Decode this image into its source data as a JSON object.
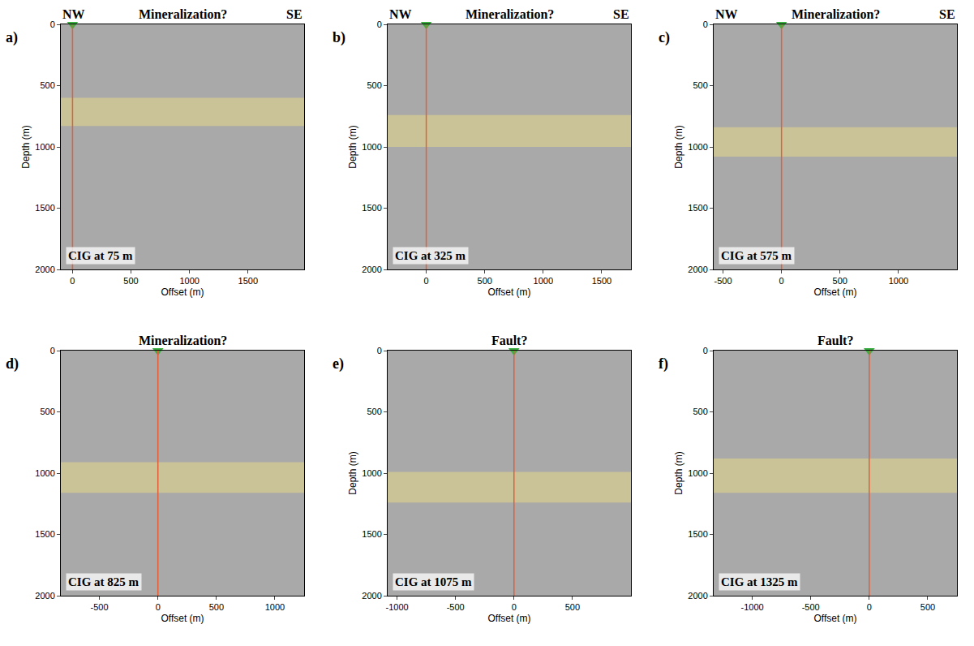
{
  "chart_data": [
    {
      "type": "seismic",
      "panel": "a)",
      "left_header": "NW",
      "title": "Mineralization?",
      "right_header": "SE",
      "annotation": "CIG at 75 m",
      "xlabel": "Offset (m)",
      "ylabel": "Depth (m)",
      "xlim": [
        -100,
        1980
      ],
      "xticks": [
        0,
        500,
        1000,
        1500
      ],
      "ylim": [
        2000,
        0
      ],
      "yticks": [
        0,
        500,
        1000,
        1500,
        2000
      ],
      "highlight": {
        "y": [
          600,
          830
        ],
        "color": "#e8d98a"
      },
      "cig_location": {
        "x": 0,
        "y": 0,
        "color": "#3cb043",
        "line_color": "#e0603a"
      }
    },
    {
      "type": "seismic",
      "panel": "b)",
      "left_header": "NW",
      "title": "Mineralization?",
      "right_header": "SE",
      "annotation": "CIG at 325 m",
      "xlabel": "Offset (m)",
      "ylabel": "Depth (m)",
      "xlim": [
        -330,
        1750
      ],
      "xticks": [
        0,
        500,
        1000,
        1500
      ],
      "ylim": [
        2000,
        0
      ],
      "yticks": [
        0,
        500,
        1000,
        1500,
        2000
      ],
      "highlight": {
        "y": [
          740,
          1000
        ],
        "color": "#e8d98a"
      },
      "cig_location": {
        "x": 0,
        "y": 0,
        "color": "#3cb043",
        "line_color": "#e0603a"
      }
    },
    {
      "type": "seismic",
      "panel": "c)",
      "left_header": "NW",
      "title": "Mineralization?",
      "right_header": "SE",
      "annotation": "CIG at 575 m",
      "xlabel": "Offset (m)",
      "ylabel": "Depth (m)",
      "xlim": [
        -580,
        1500
      ],
      "xticks": [
        -500,
        0,
        500,
        1000
      ],
      "ylim": [
        2000,
        0
      ],
      "yticks": [
        0,
        500,
        1000,
        1500,
        2000
      ],
      "highlight": {
        "y": [
          840,
          1080
        ],
        "color": "#e8d98a"
      },
      "cig_location": {
        "x": 0,
        "y": 0,
        "color": "#3cb043",
        "line_color": "#e0603a"
      }
    },
    {
      "type": "seismic",
      "panel": "d)",
      "title": "Mineralization?",
      "annotation": "CIG at 825 m",
      "xlabel": "Offset (m)",
      "xlim": [
        -830,
        1250
      ],
      "xticks": [
        -500,
        0,
        500,
        1000
      ],
      "ylim": [
        2000,
        0
      ],
      "yticks": [
        0,
        500,
        1000,
        1500,
        2000
      ],
      "highlight": {
        "y": [
          910,
          1160
        ],
        "color": "#e8d98a"
      },
      "cig_location": {
        "x": 0,
        "y": 0,
        "color": "#3cb043",
        "line_color": "#e0603a"
      }
    },
    {
      "type": "seismic",
      "panel": "e)",
      "title": "Fault?",
      "annotation": "CIG at 1075 m",
      "xlabel": "Offset (m)",
      "ylabel": "Depth (m)",
      "xlim": [
        -1080,
        1000
      ],
      "xticks": [
        -1000,
        -500,
        0,
        500
      ],
      "ylim": [
        2000,
        0
      ],
      "yticks": [
        0,
        500,
        1000,
        1500,
        2000
      ],
      "highlight": {
        "y": [
          990,
          1240
        ],
        "color": "#e8d98a"
      },
      "cig_location": {
        "x": 0,
        "y": 0,
        "color": "#3cb043",
        "line_color": "#e0603a"
      }
    },
    {
      "type": "seismic",
      "panel": "f)",
      "title": "Fault?",
      "annotation": "CIG at 1325 m",
      "xlabel": "Offset (m)",
      "ylabel": "Depth (m)",
      "xlim": [
        -1330,
        750
      ],
      "xticks": [
        -1000,
        -500,
        0,
        500
      ],
      "ylim": [
        2000,
        0
      ],
      "yticks": [
        0,
        500,
        1000,
        1500,
        2000
      ],
      "highlight": {
        "y": [
          880,
          1160
        ],
        "color": "#e8d98a"
      },
      "cig_location": {
        "x": 0,
        "y": 0,
        "color": "#3cb043",
        "line_color": "#e0603a"
      }
    }
  ]
}
